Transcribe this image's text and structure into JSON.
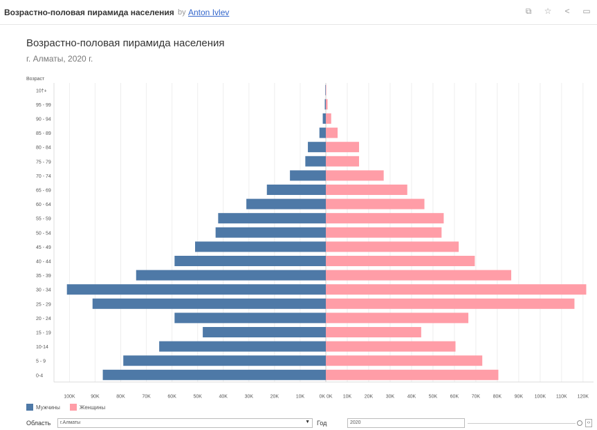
{
  "topbar": {
    "viz_name": "Возрастно-половая пирамида населения",
    "by": "by",
    "author": "Anton Ivlev",
    "icons": [
      "copy-icon",
      "star-icon",
      "share-icon",
      "comment-icon"
    ]
  },
  "header": {
    "title": "Возрастно-половая пирамида населения",
    "subtitle": "г. Алматы, 2020 г."
  },
  "chart_data": {
    "type": "bar",
    "orientation": "horizontal-pyramid",
    "ylabel": "Возраст",
    "categories": [
      "10†+",
      "95 - 99",
      "90 - 94",
      "85 - 89",
      "80 - 84",
      "75 - 79",
      "70 - 74",
      "65 - 69",
      "60 - 64",
      "55 - 59",
      "50 - 54",
      "45 - 49",
      "40 - 44",
      "35 - 39",
      "30 - 34",
      "25 - 29",
      "20 - 24",
      "15 - 19",
      "10-14",
      "5 - 9",
      "0-4"
    ],
    "series": [
      {
        "name": "Мужчины",
        "color": "#4e79a7",
        "side": "left",
        "values": [
          200,
          400,
          1200,
          2500,
          7000,
          8000,
          14000,
          23000,
          31000,
          42000,
          43000,
          51000,
          59000,
          74000,
          101000,
          91000,
          59000,
          48000,
          65000,
          79000,
          87000
        ]
      },
      {
        "name": "Женщины",
        "color": "#ff9da7",
        "side": "right",
        "values": [
          200,
          800,
          2500,
          5500,
          15500,
          15500,
          27000,
          38000,
          46000,
          55000,
          54000,
          62000,
          69500,
          86500,
          121500,
          116000,
          66500,
          44500,
          60500,
          73000,
          80500
        ]
      }
    ],
    "xticks_left": [
      "100K",
      "90K",
      "80K",
      "70K",
      "60K",
      "50K",
      "40K",
      "30K",
      "20K",
      "10K",
      "0K"
    ],
    "xticks_right": [
      "0K",
      "10K",
      "20K",
      "30K",
      "40K",
      "50K",
      "60K",
      "70K",
      "80K",
      "90K",
      "100K",
      "110K",
      "120K"
    ],
    "xlim_left": [
      0,
      102000
    ],
    "xlim_right": [
      0,
      122000
    ],
    "grid": true
  },
  "legend": {
    "items": [
      {
        "label": "Мужчины",
        "color": "#4e79a7"
      },
      {
        "label": "Женщины",
        "color": "#ff9da7"
      }
    ]
  },
  "controls": {
    "region_label": "Область",
    "region_value": "г.Алматы",
    "year_label": "Год",
    "year_value": "2020"
  }
}
